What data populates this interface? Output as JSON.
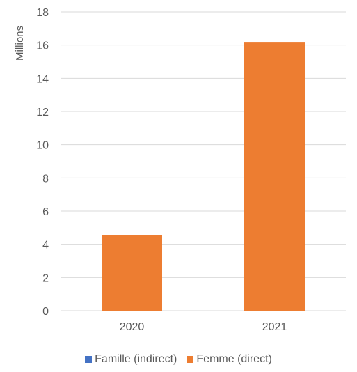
{
  "chart_data": {
    "type": "bar",
    "categories": [
      "2020",
      "2021"
    ],
    "series": [
      {
        "name": "Famille (indirect)",
        "values": [
          0,
          0
        ],
        "color": "#4472c4"
      },
      {
        "name": "Femme (direct)",
        "values": [
          4.55,
          16.15
        ],
        "color": "#ed7d31"
      }
    ],
    "ylabel": "Millions",
    "ylim": [
      0,
      18
    ],
    "yticks": [
      "0",
      "2",
      "4",
      "6",
      "8",
      "10",
      "12",
      "14",
      "16",
      "18"
    ],
    "grid": true,
    "legend_position": "bottom"
  }
}
